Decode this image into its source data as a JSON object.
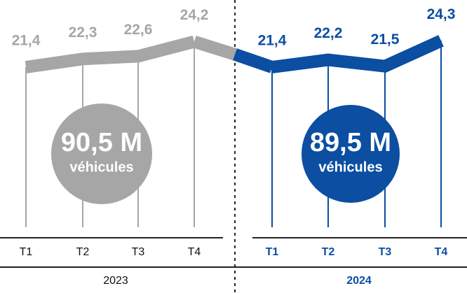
{
  "chart_data": [
    {
      "type": "line",
      "color": "#a6a6a6",
      "year": "2023",
      "categories": [
        "T1",
        "T2",
        "T3",
        "T4"
      ],
      "values": [
        21.4,
        22.3,
        22.6,
        24.2
      ],
      "value_labels": [
        "21,4",
        "22,3",
        "22,6",
        "24,2"
      ],
      "total_label": "90,5 M",
      "total_unit": "véhicules"
    },
    {
      "type": "line",
      "color": "#0b4ea2",
      "year": "2024",
      "categories": [
        "T1",
        "T2",
        "T3",
        "T4"
      ],
      "values": [
        21.4,
        22.2,
        21.5,
        24.3
      ],
      "value_labels": [
        "21,4",
        "22,2",
        "21,5",
        "24,3"
      ],
      "total_label": "89,5 M",
      "total_unit": "véhicules"
    }
  ]
}
